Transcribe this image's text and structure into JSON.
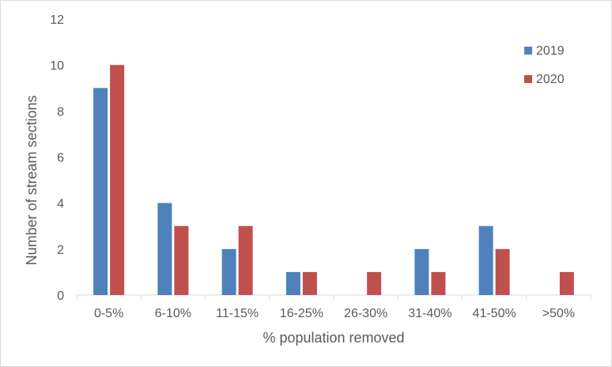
{
  "chart_data": {
    "type": "bar",
    "title": "",
    "xlabel": "% population removed",
    "ylabel": "Number of stream sections",
    "categories": [
      "0-5%",
      "6-10%",
      "11-15%",
      "16-25%",
      "26-30%",
      "31-40%",
      "41-50%",
      ">50%"
    ],
    "series": [
      {
        "name": "2019",
        "color": "#4F81BD",
        "values": [
          9,
          4,
          2,
          1,
          0,
          2,
          3,
          0
        ]
      },
      {
        "name": "2020",
        "color": "#C0504D",
        "values": [
          10,
          3,
          3,
          1,
          1,
          1,
          2,
          1
        ]
      }
    ],
    "ylim": [
      0,
      12
    ],
    "yticks": [
      0,
      2,
      4,
      6,
      8,
      10,
      12
    ],
    "grid": false,
    "legend_position": "top-right"
  }
}
